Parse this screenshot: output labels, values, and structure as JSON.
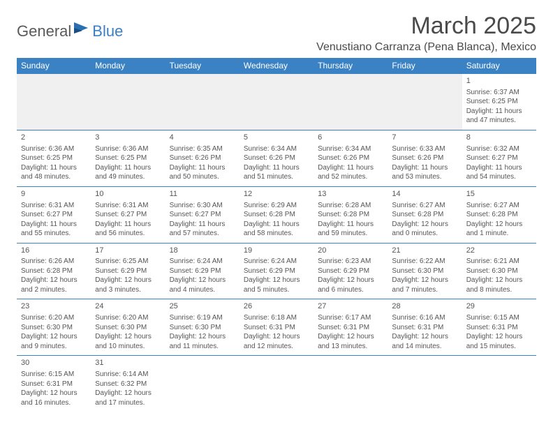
{
  "logo": {
    "part1": "General",
    "part2": "Blue"
  },
  "title": "March 2025",
  "location": "Venustiano Carranza (Pena Blanca), Mexico",
  "colors": {
    "header_bg": "#3b82c4",
    "header_text": "#ffffff",
    "cell_border": "#3b82c4",
    "body_text": "#555555",
    "blank_bg": "#f0f0f0"
  },
  "day_headers": [
    "Sunday",
    "Monday",
    "Tuesday",
    "Wednesday",
    "Thursday",
    "Friday",
    "Saturday"
  ],
  "weeks": [
    [
      {
        "blank": true
      },
      {
        "blank": true
      },
      {
        "blank": true
      },
      {
        "blank": true
      },
      {
        "blank": true
      },
      {
        "blank": true
      },
      {
        "day": "1",
        "sunrise": "Sunrise: 6:37 AM",
        "sunset": "Sunset: 6:25 PM",
        "daylight1": "Daylight: 11 hours",
        "daylight2": "and 47 minutes."
      }
    ],
    [
      {
        "day": "2",
        "sunrise": "Sunrise: 6:36 AM",
        "sunset": "Sunset: 6:25 PM",
        "daylight1": "Daylight: 11 hours",
        "daylight2": "and 48 minutes."
      },
      {
        "day": "3",
        "sunrise": "Sunrise: 6:36 AM",
        "sunset": "Sunset: 6:25 PM",
        "daylight1": "Daylight: 11 hours",
        "daylight2": "and 49 minutes."
      },
      {
        "day": "4",
        "sunrise": "Sunrise: 6:35 AM",
        "sunset": "Sunset: 6:26 PM",
        "daylight1": "Daylight: 11 hours",
        "daylight2": "and 50 minutes."
      },
      {
        "day": "5",
        "sunrise": "Sunrise: 6:34 AM",
        "sunset": "Sunset: 6:26 PM",
        "daylight1": "Daylight: 11 hours",
        "daylight2": "and 51 minutes."
      },
      {
        "day": "6",
        "sunrise": "Sunrise: 6:34 AM",
        "sunset": "Sunset: 6:26 PM",
        "daylight1": "Daylight: 11 hours",
        "daylight2": "and 52 minutes."
      },
      {
        "day": "7",
        "sunrise": "Sunrise: 6:33 AM",
        "sunset": "Sunset: 6:26 PM",
        "daylight1": "Daylight: 11 hours",
        "daylight2": "and 53 minutes."
      },
      {
        "day": "8",
        "sunrise": "Sunrise: 6:32 AM",
        "sunset": "Sunset: 6:27 PM",
        "daylight1": "Daylight: 11 hours",
        "daylight2": "and 54 minutes."
      }
    ],
    [
      {
        "day": "9",
        "sunrise": "Sunrise: 6:31 AM",
        "sunset": "Sunset: 6:27 PM",
        "daylight1": "Daylight: 11 hours",
        "daylight2": "and 55 minutes."
      },
      {
        "day": "10",
        "sunrise": "Sunrise: 6:31 AM",
        "sunset": "Sunset: 6:27 PM",
        "daylight1": "Daylight: 11 hours",
        "daylight2": "and 56 minutes."
      },
      {
        "day": "11",
        "sunrise": "Sunrise: 6:30 AM",
        "sunset": "Sunset: 6:27 PM",
        "daylight1": "Daylight: 11 hours",
        "daylight2": "and 57 minutes."
      },
      {
        "day": "12",
        "sunrise": "Sunrise: 6:29 AM",
        "sunset": "Sunset: 6:28 PM",
        "daylight1": "Daylight: 11 hours",
        "daylight2": "and 58 minutes."
      },
      {
        "day": "13",
        "sunrise": "Sunrise: 6:28 AM",
        "sunset": "Sunset: 6:28 PM",
        "daylight1": "Daylight: 11 hours",
        "daylight2": "and 59 minutes."
      },
      {
        "day": "14",
        "sunrise": "Sunrise: 6:27 AM",
        "sunset": "Sunset: 6:28 PM",
        "daylight1": "Daylight: 12 hours",
        "daylight2": "and 0 minutes."
      },
      {
        "day": "15",
        "sunrise": "Sunrise: 6:27 AM",
        "sunset": "Sunset: 6:28 PM",
        "daylight1": "Daylight: 12 hours",
        "daylight2": "and 1 minute."
      }
    ],
    [
      {
        "day": "16",
        "sunrise": "Sunrise: 6:26 AM",
        "sunset": "Sunset: 6:28 PM",
        "daylight1": "Daylight: 12 hours",
        "daylight2": "and 2 minutes."
      },
      {
        "day": "17",
        "sunrise": "Sunrise: 6:25 AM",
        "sunset": "Sunset: 6:29 PM",
        "daylight1": "Daylight: 12 hours",
        "daylight2": "and 3 minutes."
      },
      {
        "day": "18",
        "sunrise": "Sunrise: 6:24 AM",
        "sunset": "Sunset: 6:29 PM",
        "daylight1": "Daylight: 12 hours",
        "daylight2": "and 4 minutes."
      },
      {
        "day": "19",
        "sunrise": "Sunrise: 6:24 AM",
        "sunset": "Sunset: 6:29 PM",
        "daylight1": "Daylight: 12 hours",
        "daylight2": "and 5 minutes."
      },
      {
        "day": "20",
        "sunrise": "Sunrise: 6:23 AM",
        "sunset": "Sunset: 6:29 PM",
        "daylight1": "Daylight: 12 hours",
        "daylight2": "and 6 minutes."
      },
      {
        "day": "21",
        "sunrise": "Sunrise: 6:22 AM",
        "sunset": "Sunset: 6:30 PM",
        "daylight1": "Daylight: 12 hours",
        "daylight2": "and 7 minutes."
      },
      {
        "day": "22",
        "sunrise": "Sunrise: 6:21 AM",
        "sunset": "Sunset: 6:30 PM",
        "daylight1": "Daylight: 12 hours",
        "daylight2": "and 8 minutes."
      }
    ],
    [
      {
        "day": "23",
        "sunrise": "Sunrise: 6:20 AM",
        "sunset": "Sunset: 6:30 PM",
        "daylight1": "Daylight: 12 hours",
        "daylight2": "and 9 minutes."
      },
      {
        "day": "24",
        "sunrise": "Sunrise: 6:20 AM",
        "sunset": "Sunset: 6:30 PM",
        "daylight1": "Daylight: 12 hours",
        "daylight2": "and 10 minutes."
      },
      {
        "day": "25",
        "sunrise": "Sunrise: 6:19 AM",
        "sunset": "Sunset: 6:30 PM",
        "daylight1": "Daylight: 12 hours",
        "daylight2": "and 11 minutes."
      },
      {
        "day": "26",
        "sunrise": "Sunrise: 6:18 AM",
        "sunset": "Sunset: 6:31 PM",
        "daylight1": "Daylight: 12 hours",
        "daylight2": "and 12 minutes."
      },
      {
        "day": "27",
        "sunrise": "Sunrise: 6:17 AM",
        "sunset": "Sunset: 6:31 PM",
        "daylight1": "Daylight: 12 hours",
        "daylight2": "and 13 minutes."
      },
      {
        "day": "28",
        "sunrise": "Sunrise: 6:16 AM",
        "sunset": "Sunset: 6:31 PM",
        "daylight1": "Daylight: 12 hours",
        "daylight2": "and 14 minutes."
      },
      {
        "day": "29",
        "sunrise": "Sunrise: 6:15 AM",
        "sunset": "Sunset: 6:31 PM",
        "daylight1": "Daylight: 12 hours",
        "daylight2": "and 15 minutes."
      }
    ],
    [
      {
        "day": "30",
        "sunrise": "Sunrise: 6:15 AM",
        "sunset": "Sunset: 6:31 PM",
        "daylight1": "Daylight: 12 hours",
        "daylight2": "and 16 minutes."
      },
      {
        "day": "31",
        "sunrise": "Sunrise: 6:14 AM",
        "sunset": "Sunset: 6:32 PM",
        "daylight1": "Daylight: 12 hours",
        "daylight2": "and 17 minutes."
      },
      {
        "blank": true
      },
      {
        "blank": true
      },
      {
        "blank": true
      },
      {
        "blank": true
      },
      {
        "blank": true
      }
    ]
  ]
}
